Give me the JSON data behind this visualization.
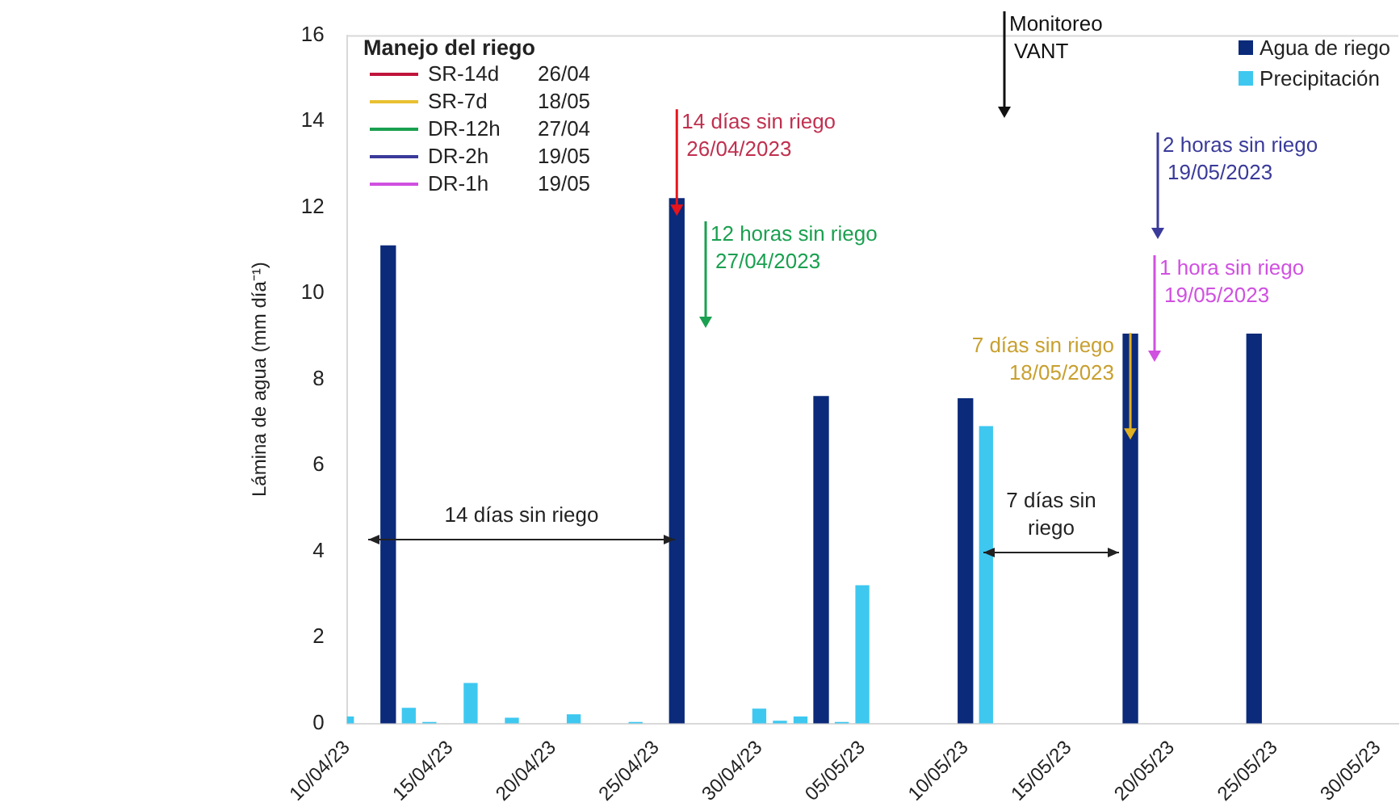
{
  "chart_data": {
    "type": "bar",
    "ylabel": "Lámina de agua (mm día⁻¹)",
    "xlim": [
      "2023-04-10",
      "2023-05-31"
    ],
    "xticks": [
      {
        "value": "2023-04-10",
        "label": "10/04/23"
      },
      {
        "value": "2023-04-15",
        "label": "15/04/23"
      },
      {
        "value": "2023-04-20",
        "label": "20/04/23"
      },
      {
        "value": "2023-04-25",
        "label": "25/04/23"
      },
      {
        "value": "2023-04-30",
        "label": "30/04/23"
      },
      {
        "value": "2023-05-05",
        "label": "05/05/23"
      },
      {
        "value": "2023-05-10",
        "label": "10/05/23"
      },
      {
        "value": "2023-05-15",
        "label": "15/05/23"
      },
      {
        "value": "2023-05-20",
        "label": "20/05/23"
      },
      {
        "value": "2023-05-25",
        "label": "25/05/23"
      },
      {
        "value": "2023-05-30",
        "label": "30/05/23"
      }
    ],
    "ylim": [
      0,
      16
    ],
    "yticks": [
      0,
      2,
      4,
      6,
      8,
      10,
      12,
      14,
      16
    ],
    "grid": false,
    "legend": "top right",
    "series": [
      {
        "name": "Agua de riego",
        "color": "#0b2a7a",
        "x": [
          "2023-04-12",
          "2023-04-26",
          "2023-05-03",
          "2023-05-10",
          "2023-05-18",
          "2023-05-24"
        ],
        "values": [
          11.1,
          12.2,
          7.6,
          7.55,
          9.05,
          9.05
        ]
      },
      {
        "name": "Precipitación",
        "color": "#3ec8f0",
        "x": [
          "2023-04-10",
          "2023-04-13",
          "2023-04-14",
          "2023-04-16",
          "2023-04-18",
          "2023-04-21",
          "2023-04-24",
          "2023-04-30",
          "2023-05-01",
          "2023-05-02",
          "2023-05-04",
          "2023-05-05",
          "2023-05-11"
        ],
        "values": [
          0.15,
          0.35,
          0.02,
          0.93,
          0.12,
          0.2,
          0.02,
          0.33,
          0.05,
          0.15,
          0.02,
          3.2,
          6.9
        ]
      }
    ],
    "annotations": [
      "Manejo del riego",
      "SR-14d",
      "26/04",
      "SR-7d",
      "18/05",
      "DR-12h",
      "27/04",
      "DR-2h",
      "19/05",
      "DR-1h",
      "19/05",
      {
        "text": "14 días sin riego\n26/04/2023",
        "x": "2023-04-26",
        "y": 11.8
      },
      {
        "text": "7 días sin riego\n18/05/2023",
        "x": "2023-05-18",
        "y": 6.6
      },
      "12 horas sin riego\n27/04/2023",
      "2 horas sin riego\n19/05/2023",
      "1 hora sin riego\n19/05/2023",
      "Monitoreo\nVANT",
      "14 días sin riego",
      "7 días sin\nriego"
    ]
  }
}
